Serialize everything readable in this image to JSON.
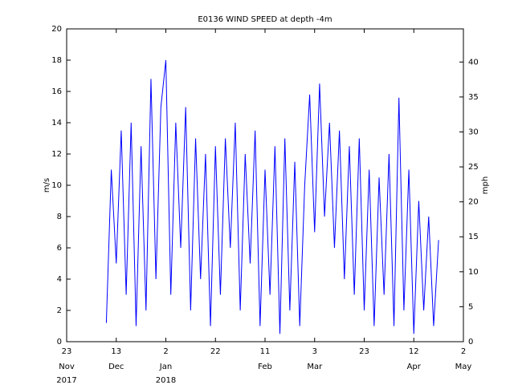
{
  "chart_data": {
    "type": "line",
    "title": "E0136 WIND SPEED at depth -4m",
    "ylabel": "m/s",
    "y2label": "mph",
    "x": [
      "2017-12-09",
      "2017-12-11",
      "2017-12-13",
      "2017-12-15",
      "2017-12-17",
      "2017-12-19",
      "2017-12-21",
      "2017-12-23",
      "2017-12-25",
      "2017-12-27",
      "2017-12-29",
      "2017-12-31",
      "2018-01-02",
      "2018-01-04",
      "2018-01-06",
      "2018-01-08",
      "2018-01-10",
      "2018-01-12",
      "2018-01-14",
      "2018-01-16",
      "2018-01-18",
      "2018-01-20",
      "2018-01-22",
      "2018-01-24",
      "2018-01-26",
      "2018-01-28",
      "2018-01-30",
      "2018-02-01",
      "2018-02-03",
      "2018-02-05",
      "2018-02-07",
      "2018-02-09",
      "2018-02-11",
      "2018-02-13",
      "2018-02-15",
      "2018-02-17",
      "2018-02-19",
      "2018-02-21",
      "2018-02-23",
      "2018-02-25",
      "2018-02-27",
      "2018-03-01",
      "2018-03-03",
      "2018-03-05",
      "2018-03-07",
      "2018-03-09",
      "2018-03-11",
      "2018-03-13",
      "2018-03-15",
      "2018-03-17",
      "2018-03-19",
      "2018-03-21",
      "2018-03-23",
      "2018-03-25",
      "2018-03-27",
      "2018-03-29",
      "2018-03-31",
      "2018-04-02",
      "2018-04-04",
      "2018-04-06",
      "2018-04-08",
      "2018-04-10",
      "2018-04-12",
      "2018-04-14",
      "2018-04-16",
      "2018-04-18",
      "2018-04-20",
      "2018-04-22"
    ],
    "series": [
      {
        "name": "wind speed",
        "color": "#0000ff",
        "values": [
          1.2,
          11,
          5,
          13.5,
          3,
          14,
          1,
          12.5,
          2,
          16.8,
          4,
          15,
          18,
          3,
          14,
          6,
          15,
          2,
          13,
          4,
          12,
          1,
          12.5,
          3,
          13,
          6,
          14,
          2,
          12,
          5,
          13.5,
          1,
          11,
          3,
          12.5,
          0.5,
          13,
          2,
          11.5,
          1,
          10,
          15.8,
          7,
          16.5,
          8,
          14,
          6,
          13.5,
          4,
          12.5,
          3,
          13,
          2,
          11,
          1,
          10.5,
          3,
          12,
          1,
          15.6,
          2,
          11,
          0.5,
          9,
          2,
          8,
          1,
          6.5
        ]
      }
    ],
    "xlim": [
      "2017-11-23",
      "2018-05-02"
    ],
    "xticks": [
      {
        "value": "2017-11-23",
        "label": "23"
      },
      {
        "value": "2017-12-13",
        "label": "13"
      },
      {
        "value": "2018-01-02",
        "label": "2"
      },
      {
        "value": "2018-01-22",
        "label": "22"
      },
      {
        "value": "2018-02-11",
        "label": "11"
      },
      {
        "value": "2018-03-03",
        "label": "3"
      },
      {
        "value": "2018-03-23",
        "label": "23"
      },
      {
        "value": "2018-04-12",
        "label": "12"
      },
      {
        "value": "2018-05-02",
        "label": "2"
      }
    ],
    "xtick_months": [
      {
        "value": "2017-11-23",
        "label": "Nov"
      },
      {
        "value": "2017-12-13",
        "label": "Dec"
      },
      {
        "value": "2018-01-02",
        "label": "Jan"
      },
      {
        "value": "2018-02-11",
        "label": "Feb"
      },
      {
        "value": "2018-03-03",
        "label": "Mar"
      },
      {
        "value": "2018-04-12",
        "label": "Apr"
      },
      {
        "value": "2018-05-02",
        "label": "May"
      }
    ],
    "xtick_years": [
      {
        "value": "2017-11-23",
        "label": "2017"
      },
      {
        "value": "2018-01-02",
        "label": "2018"
      }
    ],
    "ylim": [
      0,
      20
    ],
    "yticks": [
      0,
      2,
      4,
      6,
      8,
      10,
      12,
      14,
      16,
      18,
      20
    ],
    "y2lim": [
      0,
      44.74
    ],
    "y2ticks": [
      0,
      5,
      10,
      15,
      20,
      25,
      30,
      35,
      40
    ],
    "grid": false
  }
}
